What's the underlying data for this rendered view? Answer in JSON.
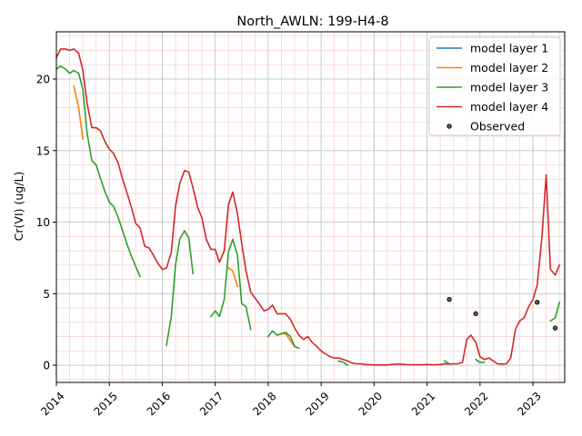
{
  "chart_data": {
    "type": "line",
    "title": "North_AWLN: 199-H4-8",
    "xlabel": "",
    "ylabel": "Cr(VI) (ug/L)",
    "xlim": [
      2014.0,
      2023.6
    ],
    "ylim": [
      -1.2,
      23.3
    ],
    "xticks": [
      {
        "value": 2014,
        "label": "2014"
      },
      {
        "value": 2015,
        "label": "2015"
      },
      {
        "value": 2016,
        "label": "2016"
      },
      {
        "value": 2017,
        "label": "2017"
      },
      {
        "value": 2018,
        "label": "2018"
      },
      {
        "value": 2019,
        "label": "2019"
      },
      {
        "value": 2020,
        "label": "2020"
      },
      {
        "value": 2021,
        "label": "2021"
      },
      {
        "value": 2022,
        "label": "2022"
      },
      {
        "value": 2023,
        "label": "2023"
      }
    ],
    "yticks": [
      {
        "value": 0,
        "label": "0"
      },
      {
        "value": 5,
        "label": "5"
      },
      {
        "value": 10,
        "label": "10"
      },
      {
        "value": 15,
        "label": "15"
      },
      {
        "value": 20,
        "label": "20"
      }
    ],
    "grid": true,
    "legend_position": "top-right",
    "series": [
      {
        "name": "model layer 1",
        "color": "#1f77b4",
        "segments": []
      },
      {
        "name": "model layer 2",
        "color": "#ff7f0e",
        "segments": [
          [
            [
              2014.33,
              19.5
            ],
            [
              2014.42,
              18.0
            ],
            [
              2014.5,
              15.8
            ]
          ],
          [
            [
              2017.25,
              6.8
            ],
            [
              2017.33,
              6.6
            ],
            [
              2017.42,
              5.5
            ]
          ],
          [
            [
              2018.17,
              2.1
            ],
            [
              2018.25,
              2.2
            ],
            [
              2018.33,
              2.2
            ],
            [
              2018.42,
              1.7
            ],
            [
              2018.5,
              1.3
            ]
          ]
        ]
      },
      {
        "name": "model layer 3",
        "color": "#2ca02c",
        "segments": [
          [
            [
              2014.0,
              20.7
            ],
            [
              2014.08,
              20.9
            ],
            [
              2014.17,
              20.7
            ],
            [
              2014.25,
              20.4
            ],
            [
              2014.33,
              20.6
            ],
            [
              2014.42,
              20.4
            ],
            [
              2014.5,
              19.3
            ],
            [
              2014.58,
              16.2
            ],
            [
              2014.67,
              14.3
            ],
            [
              2014.75,
              14.0
            ],
            [
              2014.83,
              13.1
            ],
            [
              2014.92,
              12.1
            ],
            [
              2015.0,
              11.4
            ],
            [
              2015.08,
              11.1
            ],
            [
              2015.17,
              10.3
            ],
            [
              2015.25,
              9.4
            ],
            [
              2015.33,
              8.5
            ],
            [
              2015.42,
              7.6
            ],
            [
              2015.5,
              6.9
            ],
            [
              2015.58,
              6.2
            ]
          ],
          [
            [
              2016.08,
              1.4
            ],
            [
              2016.17,
              3.4
            ],
            [
              2016.25,
              7.0
            ],
            [
              2016.33,
              8.8
            ],
            [
              2016.42,
              9.4
            ],
            [
              2016.5,
              8.9
            ],
            [
              2016.58,
              6.4
            ]
          ],
          [
            [
              2016.92,
              3.4
            ],
            [
              2017.0,
              3.8
            ],
            [
              2017.08,
              3.4
            ],
            [
              2017.17,
              4.6
            ],
            [
              2017.25,
              7.9
            ],
            [
              2017.33,
              8.8
            ],
            [
              2017.42,
              7.7
            ],
            [
              2017.5,
              4.3
            ],
            [
              2017.58,
              4.1
            ],
            [
              2017.67,
              2.5
            ]
          ],
          [
            [
              2018.0,
              2.0
            ],
            [
              2018.08,
              2.4
            ],
            [
              2018.17,
              2.1
            ],
            [
              2018.25,
              2.2
            ],
            [
              2018.33,
              2.3
            ],
            [
              2018.42,
              2.0
            ],
            [
              2018.5,
              1.3
            ],
            [
              2018.58,
              1.2
            ]
          ],
          [
            [
              2019.33,
              0.3
            ],
            [
              2019.42,
              0.2
            ],
            [
              2019.5,
              0.0
            ]
          ],
          [
            [
              2021.33,
              0.3
            ],
            [
              2021.42,
              0.1
            ]
          ],
          [
            [
              2021.92,
              0.4
            ],
            [
              2022.0,
              0.2
            ],
            [
              2022.08,
              0.2
            ]
          ],
          [
            [
              2023.33,
              3.1
            ],
            [
              2023.42,
              3.3
            ],
            [
              2023.5,
              4.4
            ]
          ]
        ]
      },
      {
        "name": "model layer 4",
        "color": "#d62728",
        "segments": [
          [
            [
              2014.0,
              21.5
            ],
            [
              2014.08,
              22.1
            ],
            [
              2014.17,
              22.1
            ],
            [
              2014.25,
              22.0
            ],
            [
              2014.33,
              22.1
            ],
            [
              2014.42,
              21.8
            ],
            [
              2014.5,
              20.6
            ],
            [
              2014.58,
              18.3
            ],
            [
              2014.67,
              16.6
            ],
            [
              2014.75,
              16.6
            ],
            [
              2014.83,
              16.4
            ],
            [
              2014.92,
              15.6
            ],
            [
              2015.0,
              15.1
            ],
            [
              2015.08,
              14.8
            ],
            [
              2015.17,
              14.1
            ],
            [
              2015.25,
              13.0
            ],
            [
              2015.33,
              12.1
            ],
            [
              2015.42,
              11.0
            ],
            [
              2015.5,
              9.9
            ],
            [
              2015.58,
              9.6
            ],
            [
              2015.67,
              8.3
            ],
            [
              2015.75,
              8.2
            ],
            [
              2015.83,
              7.7
            ],
            [
              2015.92,
              7.1
            ],
            [
              2016.0,
              6.7
            ],
            [
              2016.08,
              6.8
            ],
            [
              2016.17,
              7.9
            ],
            [
              2016.25,
              11.1
            ],
            [
              2016.33,
              12.7
            ],
            [
              2016.42,
              13.6
            ],
            [
              2016.5,
              13.5
            ],
            [
              2016.58,
              12.4
            ],
            [
              2016.67,
              11.0
            ],
            [
              2016.75,
              10.3
            ],
            [
              2016.83,
              8.8
            ],
            [
              2016.92,
              8.1
            ],
            [
              2017.0,
              8.1
            ],
            [
              2017.08,
              7.2
            ],
            [
              2017.17,
              8.0
            ],
            [
              2017.25,
              11.2
            ],
            [
              2017.33,
              12.1
            ],
            [
              2017.42,
              10.6
            ],
            [
              2017.5,
              8.5
            ],
            [
              2017.58,
              6.6
            ],
            [
              2017.67,
              5.1
            ],
            [
              2017.75,
              4.7
            ],
            [
              2017.83,
              4.3
            ],
            [
              2017.92,
              3.8
            ],
            [
              2018.0,
              3.9
            ],
            [
              2018.08,
              4.2
            ],
            [
              2018.17,
              3.6
            ],
            [
              2018.25,
              3.6
            ],
            [
              2018.33,
              3.6
            ],
            [
              2018.42,
              3.2
            ],
            [
              2018.5,
              2.6
            ],
            [
              2018.58,
              2.1
            ],
            [
              2018.67,
              1.8
            ],
            [
              2018.75,
              2.0
            ],
            [
              2018.83,
              1.6
            ],
            [
              2018.92,
              1.3
            ],
            [
              2019.0,
              1.0
            ],
            [
              2019.08,
              0.8
            ],
            [
              2019.17,
              0.6
            ],
            [
              2019.25,
              0.5
            ],
            [
              2019.33,
              0.5
            ],
            [
              2019.42,
              0.4
            ],
            [
              2019.5,
              0.3
            ],
            [
              2019.58,
              0.15
            ],
            [
              2019.67,
              0.1
            ],
            [
              2019.75,
              0.1
            ],
            [
              2019.83,
              0.05
            ],
            [
              2019.92,
              0.03
            ],
            [
              2020.0,
              0.02
            ],
            [
              2020.08,
              0.02
            ],
            [
              2020.17,
              0.02
            ],
            [
              2020.25,
              0.02
            ],
            [
              2020.33,
              0.05
            ],
            [
              2020.42,
              0.08
            ],
            [
              2020.5,
              0.08
            ],
            [
              2020.58,
              0.05
            ],
            [
              2020.67,
              0.03
            ],
            [
              2020.75,
              0.03
            ],
            [
              2020.83,
              0.03
            ],
            [
              2020.92,
              0.03
            ],
            [
              2021.0,
              0.05
            ],
            [
              2021.08,
              0.03
            ],
            [
              2021.17,
              0.03
            ],
            [
              2021.25,
              0.05
            ],
            [
              2021.33,
              0.1
            ],
            [
              2021.42,
              0.08
            ],
            [
              2021.5,
              0.1
            ],
            [
              2021.58,
              0.1
            ],
            [
              2021.67,
              0.2
            ],
            [
              2021.75,
              1.8
            ],
            [
              2021.83,
              2.1
            ],
            [
              2021.92,
              1.6
            ],
            [
              2022.0,
              0.6
            ],
            [
              2022.08,
              0.4
            ],
            [
              2022.17,
              0.5
            ],
            [
              2022.25,
              0.3
            ],
            [
              2022.33,
              0.1
            ],
            [
              2022.42,
              0.08
            ],
            [
              2022.5,
              0.1
            ],
            [
              2022.58,
              0.5
            ],
            [
              2022.67,
              2.5
            ],
            [
              2022.75,
              3.1
            ],
            [
              2022.83,
              3.3
            ],
            [
              2022.92,
              4.1
            ],
            [
              2023.0,
              4.6
            ],
            [
              2023.08,
              5.6
            ],
            [
              2023.17,
              9.0
            ],
            [
              2023.25,
              13.3
            ],
            [
              2023.33,
              6.7
            ],
            [
              2023.42,
              6.3
            ],
            [
              2023.5,
              7.0
            ]
          ]
        ]
      }
    ],
    "observed": {
      "name": "Observed",
      "points": [
        [
          2021.42,
          4.6
        ],
        [
          2021.92,
          3.6
        ],
        [
          2023.08,
          4.4
        ],
        [
          2023.42,
          2.6
        ]
      ]
    }
  }
}
